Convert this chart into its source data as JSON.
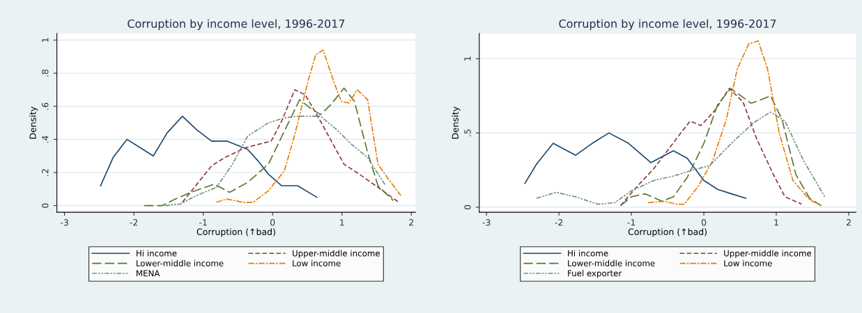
{
  "chart_data": [
    {
      "type": "line",
      "title": "Corruption by income level, 1996-2017",
      "xlabel": "Corruption (↑bad)",
      "ylabel": "Density",
      "xlim": [
        -3.11,
        2.06
      ],
      "xticks": [
        -3,
        -2,
        -1,
        0,
        1,
        2
      ],
      "ylim": [
        -0.04,
        1.04
      ],
      "yticks": [
        0,
        {
          "value": 0.2,
          "label": ".2"
        },
        {
          "value": 0.4,
          "label": ".4"
        },
        {
          "value": 0.6,
          "label": ".6"
        },
        {
          "value": 0.8,
          "label": ".8"
        },
        1
      ],
      "grid": "y",
      "legend": "bottom",
      "series": [
        {
          "name": "Hi income",
          "color": "#1a476f",
          "line_style": "solid",
          "x": [
            -2.48,
            -2.3,
            -2.1,
            -1.91,
            -1.72,
            -1.52,
            -1.3,
            -1.1,
            -0.88,
            -0.66,
            -0.36,
            -0.21,
            -0.06,
            0.13,
            0.36,
            0.64
          ],
          "values": [
            0.12,
            0.29,
            0.4,
            0.35,
            0.3,
            0.44,
            0.54,
            0.46,
            0.39,
            0.39,
            0.34,
            0.27,
            0.19,
            0.12,
            0.12,
            0.05
          ]
        },
        {
          "name": "Upper-middle income",
          "color": "#90353b",
          "line_style": "dashed",
          "x": [
            -1.3,
            -0.88,
            -0.69,
            -0.39,
            -0.02,
            0.13,
            0.32,
            0.47,
            0.69,
            1.03,
            1.25,
            1.52,
            1.82
          ],
          "values": [
            0.02,
            0.24,
            0.29,
            0.35,
            0.39,
            0.51,
            0.7,
            0.67,
            0.51,
            0.25,
            0.19,
            0.11,
            0.02
          ]
        },
        {
          "name": "Lower-middle income",
          "color": "#55752f",
          "line_style": "longdash",
          "x": [
            -1.85,
            -1.59,
            -1.4,
            -1.18,
            -0.84,
            -0.62,
            -0.36,
            -0.06,
            0.17,
            0.39,
            0.54,
            0.69,
            0.84,
            1.03,
            1.18,
            1.37,
            1.52,
            1.74
          ],
          "values": [
            0,
            0,
            0.04,
            0.08,
            0.13,
            0.08,
            0.14,
            0.25,
            0.45,
            0.64,
            0.59,
            0.55,
            0.61,
            0.71,
            0.63,
            0.32,
            0.12,
            0.03
          ]
        },
        {
          "name": "Low income",
          "color": "#e37e00",
          "line_style": "dashdot",
          "x": [
            -0.81,
            -0.66,
            -0.43,
            -0.28,
            -0.06,
            0.17,
            0.32,
            0.51,
            0.62,
            0.73,
            0.88,
            0.99,
            1.1,
            1.22,
            1.37,
            1.52,
            1.67,
            1.85
          ],
          "values": [
            0.02,
            0.04,
            0.02,
            0.02,
            0.09,
            0.21,
            0.43,
            0.75,
            0.91,
            0.94,
            0.75,
            0.63,
            0.62,
            0.7,
            0.64,
            0.25,
            0.16,
            0.06
          ]
        },
        {
          "name": "MENA",
          "color": "#6e8e84",
          "line_style": "dashdotdot",
          "x": [
            -1.55,
            -1.33,
            -1.1,
            -0.81,
            -0.58,
            -0.36,
            -0.06,
            0.17,
            0.36,
            0.51,
            0.69,
            0.92,
            1.14,
            1.37,
            1.63
          ],
          "values": [
            0,
            0.01,
            0.06,
            0.11,
            0.25,
            0.42,
            0.5,
            0.53,
            0.54,
            0.54,
            0.54,
            0.46,
            0.37,
            0.29,
            0.12
          ]
        }
      ]
    },
    {
      "type": "line",
      "title": "Corruption by income level, 1996-2017",
      "xlabel": "Corruption (↑bad)",
      "ylabel": "Density",
      "xlim": [
        -3.1,
        2.1
      ],
      "xticks": [
        -3,
        -2,
        -1,
        0,
        1,
        2
      ],
      "ylim": [
        -0.034,
        1.17
      ],
      "yticks": [
        0,
        {
          "value": 0.5,
          "label": ".5"
        },
        1
      ],
      "grid": "y",
      "legend": "bottom",
      "series": [
        {
          "name": "Hi income",
          "color": "#1a476f",
          "line_style": "solid",
          "x": [
            -2.47,
            -2.31,
            -2.08,
            -1.77,
            -1.54,
            -1.31,
            -1.04,
            -0.73,
            -0.42,
            -0.23,
            0,
            0.19,
            0.38,
            0.58
          ],
          "values": [
            0.16,
            0.29,
            0.43,
            0.35,
            0.43,
            0.5,
            0.43,
            0.3,
            0.38,
            0.33,
            0.18,
            0.12,
            0.09,
            0.06
          ]
        },
        {
          "name": "Upper-middle income",
          "color": "#90353b",
          "line_style": "dashed",
          "x": [
            -1.15,
            -0.92,
            -0.69,
            -0.38,
            -0.19,
            -0.04,
            0.15,
            0.35,
            0.54,
            0.73,
            0.96,
            1.12,
            1.35
          ],
          "values": [
            0.01,
            0.14,
            0.26,
            0.46,
            0.58,
            0.55,
            0.65,
            0.8,
            0.71,
            0.46,
            0.22,
            0.07,
            0.02
          ]
        },
        {
          "name": "Lower-middle income",
          "color": "#55752f",
          "line_style": "longdash",
          "x": [
            -1.15,
            -1.0,
            -0.81,
            -0.58,
            -0.42,
            -0.23,
            0,
            0.19,
            0.37,
            0.54,
            0.65,
            0.77,
            0.92,
            1.08,
            1.27,
            1.46,
            1.62
          ],
          "values": [
            0.01,
            0.07,
            0.09,
            0.04,
            0.07,
            0.2,
            0.43,
            0.69,
            0.8,
            0.74,
            0.7,
            0.72,
            0.75,
            0.59,
            0.22,
            0.06,
            0.01
          ]
        },
        {
          "name": "Low income",
          "color": "#e37e00",
          "line_style": "dashdot",
          "x": [
            -0.77,
            -0.54,
            -0.38,
            -0.27,
            -0.08,
            0.12,
            0.31,
            0.46,
            0.62,
            0.75,
            0.88,
            1.04,
            1.23,
            1.46,
            1.62
          ],
          "values": [
            0.03,
            0.04,
            0.02,
            0.02,
            0.14,
            0.31,
            0.59,
            0.93,
            1.1,
            1.12,
            0.93,
            0.5,
            0.18,
            0.05,
            0.01
          ]
        },
        {
          "name": "Fuel exporter",
          "color": "#6e8e84",
          "line_style": "dashdotdot",
          "x": [
            -2.31,
            -2.04,
            -1.77,
            -1.46,
            -1.23,
            -1.0,
            -0.69,
            -0.42,
            -0.15,
            0.08,
            0.38,
            0.69,
            0.92,
            1.12,
            1.38,
            1.67
          ],
          "values": [
            0.06,
            0.1,
            0.07,
            0.02,
            0.03,
            0.11,
            0.18,
            0.21,
            0.25,
            0.28,
            0.43,
            0.57,
            0.64,
            0.58,
            0.31,
            0.07
          ]
        }
      ]
    }
  ]
}
